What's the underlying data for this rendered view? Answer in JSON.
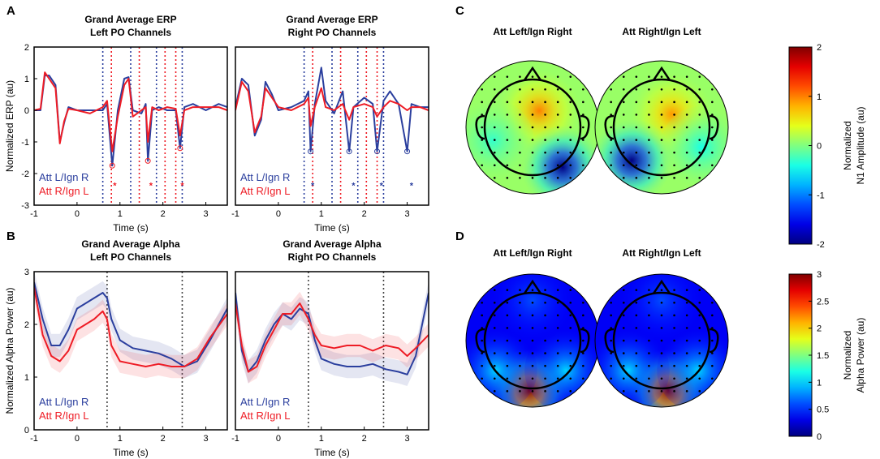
{
  "colors": {
    "att_left": "#2b3f9e",
    "att_right": "#ee1c25",
    "axis": "#000000",
    "vline": "#444444"
  },
  "panels": {
    "a": "A",
    "b": "B",
    "c": "C",
    "d": "D"
  },
  "chart_data": [
    {
      "id": "A1",
      "type": "line",
      "title": [
        "Grand Average ERP",
        "Left PO Channels"
      ],
      "xlabel": "Time (s)",
      "ylabel": "Normalized ERP (au)",
      "xlim": [
        -1,
        3.5
      ],
      "ylim": [
        -3,
        2
      ],
      "xticks": [
        -1,
        0,
        1,
        2,
        3
      ],
      "yticks": [
        -3,
        -2,
        -1,
        0,
        1,
        2
      ],
      "legend": [
        "Att L/Ign R",
        "Att R/Ign L"
      ],
      "vlines": [
        {
          "x": 0.6,
          "series": 0
        },
        {
          "x": 1.25,
          "series": 0
        },
        {
          "x": 1.85,
          "series": 0
        },
        {
          "x": 2.45,
          "series": 0
        },
        {
          "x": 0.8,
          "series": 1
        },
        {
          "x": 1.45,
          "series": 1
        },
        {
          "x": 2.05,
          "series": 1
        },
        {
          "x": 2.3,
          "series": 1
        }
      ],
      "markers": [
        {
          "x": 0.82,
          "y": -1.75,
          "series": 1
        },
        {
          "x": 1.65,
          "y": -1.6,
          "series": 1
        },
        {
          "x": 2.4,
          "y": -1.2,
          "series": 1
        }
      ],
      "stars": [
        {
          "x": 0.88,
          "y": -2.35,
          "series": 1
        },
        {
          "x": 1.72,
          "y": -2.35,
          "series": 1
        },
        {
          "x": 2.45,
          "y": -2.35,
          "series": 1
        }
      ],
      "series": [
        {
          "name": "Att L/Ign R",
          "x": [
            -1,
            -0.85,
            -0.75,
            -0.65,
            -0.5,
            -0.4,
            -0.3,
            -0.2,
            0,
            0.3,
            0.6,
            0.7,
            0.82,
            0.95,
            1.1,
            1.2,
            1.3,
            1.5,
            1.6,
            1.65,
            1.75,
            1.9,
            2.1,
            2.3,
            2.4,
            2.5,
            2.7,
            3.0,
            3.3,
            3.5
          ],
          "y": [
            0,
            0,
            1.1,
            1.1,
            0.8,
            -1.0,
            -0.4,
            0.1,
            0,
            0,
            0,
            0.2,
            -1.75,
            0.0,
            1.0,
            1.05,
            0,
            -0.1,
            0.2,
            -1.6,
            0,
            0.1,
            0,
            0,
            -1.2,
            0.1,
            0.2,
            0,
            0.2,
            0.1
          ]
        },
        {
          "name": "Att R/Ign L",
          "x": [
            -1,
            -0.85,
            -0.75,
            -0.65,
            -0.5,
            -0.4,
            -0.3,
            -0.2,
            0,
            0.3,
            0.6,
            0.7,
            0.82,
            0.95,
            1.1,
            1.2,
            1.3,
            1.5,
            1.6,
            1.65,
            1.75,
            1.9,
            2.1,
            2.3,
            2.4,
            2.5,
            2.7,
            3.0,
            3.3,
            3.5
          ],
          "y": [
            0,
            0.05,
            1.2,
            1.0,
            0.7,
            -1.05,
            -0.35,
            0.05,
            0,
            -0.1,
            0.1,
            0.3,
            -1.3,
            -0.2,
            0.8,
            1.0,
            -0.2,
            0,
            0.1,
            -1.0,
            0.1,
            0,
            0.1,
            0.05,
            -0.8,
            0,
            0.1,
            0.1,
            0.1,
            0
          ]
        }
      ]
    },
    {
      "id": "A2",
      "type": "line",
      "title": [
        "Grand Average ERP",
        "Right PO Channels"
      ],
      "xlabel": "Time (s)",
      "ylabel": "",
      "xlim": [
        -1,
        3.5
      ],
      "ylim": [
        -3,
        2
      ],
      "xticks": [
        -1,
        0,
        1,
        2,
        3
      ],
      "yticks": [],
      "legend": [
        "Att L/Ign R",
        "Att R/Ign L"
      ],
      "vlines": [
        {
          "x": 0.6,
          "series": 0
        },
        {
          "x": 1.25,
          "series": 0
        },
        {
          "x": 1.85,
          "series": 0
        },
        {
          "x": 2.45,
          "series": 0
        },
        {
          "x": 0.8,
          "series": 1
        },
        {
          "x": 1.45,
          "series": 1
        },
        {
          "x": 2.05,
          "series": 1
        },
        {
          "x": 2.3,
          "series": 1
        }
      ],
      "markers": [
        {
          "x": 0.75,
          "y": -1.3,
          "series": 0
        },
        {
          "x": 1.65,
          "y": -1.3,
          "series": 0
        },
        {
          "x": 2.3,
          "y": -1.3,
          "series": 0
        },
        {
          "x": 3.0,
          "y": -1.3,
          "series": 0
        }
      ],
      "stars": [
        {
          "x": 0.8,
          "y": -2.35,
          "series": 0
        },
        {
          "x": 1.75,
          "y": -2.35,
          "series": 0
        },
        {
          "x": 2.4,
          "y": -2.35,
          "series": 0
        },
        {
          "x": 3.1,
          "y": -2.35,
          "series": 0
        }
      ],
      "series": [
        {
          "name": "Att L/Ign R",
          "x": [
            -1,
            -0.85,
            -0.7,
            -0.55,
            -0.4,
            -0.3,
            -0.15,
            0,
            0.3,
            0.6,
            0.7,
            0.75,
            0.85,
            1.0,
            1.1,
            1.3,
            1.5,
            1.65,
            1.75,
            2.0,
            2.2,
            2.3,
            2.45,
            2.6,
            2.8,
            3.0,
            3.1,
            3.3,
            3.5
          ],
          "y": [
            0.1,
            1.0,
            0.8,
            -0.8,
            -0.3,
            0.9,
            0.5,
            0,
            0.1,
            0.3,
            0.6,
            -1.3,
            0.2,
            1.35,
            0.3,
            -0.1,
            0.6,
            -1.3,
            0.1,
            0.4,
            0.2,
            -1.3,
            0.3,
            0.6,
            0.2,
            -1.3,
            0.2,
            0.1,
            0.1
          ]
        },
        {
          "name": "Att R/Ign L",
          "x": [
            -1,
            -0.85,
            -0.7,
            -0.55,
            -0.4,
            -0.3,
            -0.15,
            0,
            0.3,
            0.6,
            0.7,
            0.75,
            0.85,
            1.0,
            1.1,
            1.3,
            1.5,
            1.65,
            1.75,
            2.0,
            2.2,
            2.3,
            2.45,
            2.6,
            2.8,
            3.0,
            3.1,
            3.3,
            3.5
          ],
          "y": [
            0,
            0.9,
            0.6,
            -0.7,
            -0.2,
            0.7,
            0.4,
            0.1,
            0,
            0.2,
            0.4,
            -0.5,
            0.1,
            0.7,
            0.1,
            0,
            0.2,
            -0.3,
            0.1,
            0.2,
            0.1,
            -0.2,
            0.1,
            0.3,
            0.2,
            0,
            0.1,
            0.1,
            0
          ]
        }
      ]
    },
    {
      "id": "B1",
      "type": "line",
      "title": [
        "Grand Average Alpha",
        "Left PO Channels"
      ],
      "xlabel": "Time (s)",
      "ylabel": "Normalized Alpha Power (au)",
      "xlim": [
        -1,
        3.5
      ],
      "ylim": [
        0,
        3
      ],
      "xticks": [
        -1,
        0,
        1,
        2,
        3
      ],
      "yticks": [
        0,
        1,
        2,
        3
      ],
      "legend": [
        "Att L/Ign R",
        "Att R/Ign L"
      ],
      "vlines": [
        {
          "x": 0.7,
          "series": -1
        },
        {
          "x": 2.45,
          "series": -1
        }
      ],
      "markers": [],
      "stars": [],
      "series": [
        {
          "name": "Att L/Ign R",
          "x": [
            -1,
            -0.8,
            -0.6,
            -0.4,
            -0.2,
            0,
            0.2,
            0.4,
            0.6,
            0.7,
            0.8,
            1.0,
            1.3,
            1.6,
            1.9,
            2.2,
            2.5,
            2.8,
            3.1,
            3.5
          ],
          "y": [
            2.8,
            2.1,
            1.6,
            1.6,
            1.9,
            2.3,
            2.4,
            2.5,
            2.6,
            2.5,
            2.1,
            1.7,
            1.55,
            1.5,
            1.45,
            1.35,
            1.2,
            1.3,
            1.7,
            2.3
          ],
          "band": 0.22
        },
        {
          "name": "Att R/Ign L",
          "x": [
            -1,
            -0.8,
            -0.6,
            -0.4,
            -0.2,
            0,
            0.2,
            0.4,
            0.6,
            0.7,
            0.8,
            1.0,
            1.3,
            1.6,
            1.9,
            2.2,
            2.5,
            2.8,
            3.1,
            3.5
          ],
          "y": [
            2.7,
            1.8,
            1.4,
            1.3,
            1.5,
            1.9,
            2.0,
            2.1,
            2.25,
            2.1,
            1.6,
            1.3,
            1.25,
            1.2,
            1.25,
            1.2,
            1.2,
            1.35,
            1.75,
            2.2
          ],
          "band": 0.22
        }
      ]
    },
    {
      "id": "B2",
      "type": "line",
      "title": [
        "Grand Average Alpha",
        "Right PO Channels"
      ],
      "xlabel": "Time (s)",
      "ylabel": "",
      "xlim": [
        -1,
        3.5
      ],
      "ylim": [
        0,
        3
      ],
      "xticks": [
        -1,
        0,
        1,
        2,
        3
      ],
      "yticks": [],
      "legend": [
        "Att L/Ign R",
        "Att R/Ign L"
      ],
      "vlines": [
        {
          "x": 0.7,
          "series": -1
        },
        {
          "x": 2.45,
          "series": -1
        }
      ],
      "markers": [],
      "stars": [],
      "series": [
        {
          "name": "Att L/Ign R",
          "x": [
            -1,
            -0.85,
            -0.7,
            -0.5,
            -0.3,
            -0.1,
            0.1,
            0.3,
            0.5,
            0.7,
            0.85,
            1.0,
            1.3,
            1.6,
            1.9,
            2.2,
            2.5,
            2.8,
            3.0,
            3.2,
            3.5
          ],
          "y": [
            2.6,
            1.5,
            1.1,
            1.3,
            1.7,
            2.0,
            2.2,
            2.1,
            2.3,
            2.2,
            1.7,
            1.35,
            1.25,
            1.2,
            1.2,
            1.25,
            1.15,
            1.1,
            1.05,
            1.4,
            2.6
          ],
          "band": 0.22
        },
        {
          "name": "Att R/Ign L",
          "x": [
            -1,
            -0.85,
            -0.7,
            -0.5,
            -0.3,
            -0.1,
            0.1,
            0.3,
            0.5,
            0.7,
            0.85,
            1.0,
            1.3,
            1.6,
            1.9,
            2.2,
            2.5,
            2.8,
            3.0,
            3.2,
            3.5
          ],
          "y": [
            2.4,
            1.6,
            1.1,
            1.2,
            1.6,
            1.9,
            2.2,
            2.2,
            2.4,
            2.1,
            1.8,
            1.6,
            1.55,
            1.6,
            1.6,
            1.5,
            1.6,
            1.55,
            1.4,
            1.55,
            1.8
          ],
          "band": 0.22
        }
      ]
    },
    {
      "id": "C",
      "type": "heatmap",
      "maps": [
        "Att Left/Ign Right",
        "Att Right/Ign Left"
      ],
      "colorbar_label": [
        "Normalized",
        "N1 Amplitude (au)"
      ],
      "clim": [
        -2,
        2
      ],
      "colorbar_ticks": [
        "2",
        "1",
        "0",
        "-1",
        "-2"
      ],
      "background_value": 0.1,
      "blobs": [
        [
          {
            "x": 0.1,
            "y": 0.25,
            "v": 1.0
          },
          {
            "x": 0.45,
            "y": -0.6,
            "v": -2.0
          },
          {
            "x": -0.6,
            "y": -0.2,
            "v": -0.3
          }
        ],
        [
          {
            "x": 0.15,
            "y": 0.2,
            "v": 0.9
          },
          {
            "x": -0.45,
            "y": -0.5,
            "v": -2.0
          },
          {
            "x": 0.6,
            "y": -0.3,
            "v": -0.4
          }
        ]
      ]
    },
    {
      "id": "D",
      "type": "heatmap",
      "maps": [
        "Att Left/Ign Right",
        "Att Right/Ign Left"
      ],
      "colorbar_label": [
        "Normalized",
        "Alpha Power (au)"
      ],
      "clim": [
        0,
        3
      ],
      "colorbar_ticks": [
        "3",
        "2.5",
        "2",
        "1.5",
        "1",
        "0.5",
        "0"
      ],
      "background_value": 0.35,
      "blobs": [
        [
          {
            "x": -0.05,
            "y": -0.75,
            "v": 3.0
          },
          {
            "x": -0.55,
            "y": -0.45,
            "v": 1.0
          },
          {
            "x": 0.5,
            "y": -0.45,
            "v": 1.0
          },
          {
            "x": 0.0,
            "y": 0.6,
            "v": 0.6
          }
        ],
        [
          {
            "x": 0.1,
            "y": -0.75,
            "v": 3.0
          },
          {
            "x": -0.5,
            "y": -0.45,
            "v": 1.0
          },
          {
            "x": 0.55,
            "y": -0.45,
            "v": 1.0
          },
          {
            "x": 0.0,
            "y": 0.6,
            "v": 0.6
          }
        ]
      ]
    }
  ]
}
